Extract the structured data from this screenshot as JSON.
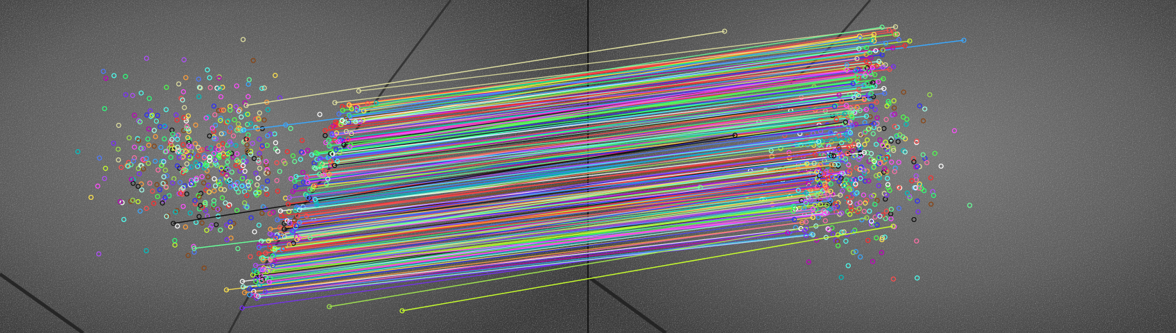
{
  "scene": {
    "panel_count": 2,
    "surface_tone": "#5f5f5f",
    "divider_color": "#141414",
    "crack_color": "#2a2a2a",
    "match_count": 210,
    "left_only_keypoints": 520,
    "right_only_keypoints": 430
  },
  "palette": [
    "#ff4d4d",
    "#4dff4d",
    "#4d7bff",
    "#ffe34d",
    "#ff4dff",
    "#4dfff0",
    "#ff9f3a",
    "#b14dff",
    "#66ff99",
    "#ff6fa8",
    "#9fe34d",
    "#3aa8ff",
    "#e0e0a0",
    "#a0ffea",
    "#7a2cff",
    "#2cff7a",
    "#ff2c2c",
    "#2c2cff",
    "#c8ff2c",
    "#ffffff",
    "#111111",
    "#8b4513",
    "#00c0c0",
    "#c000c0"
  ]
}
